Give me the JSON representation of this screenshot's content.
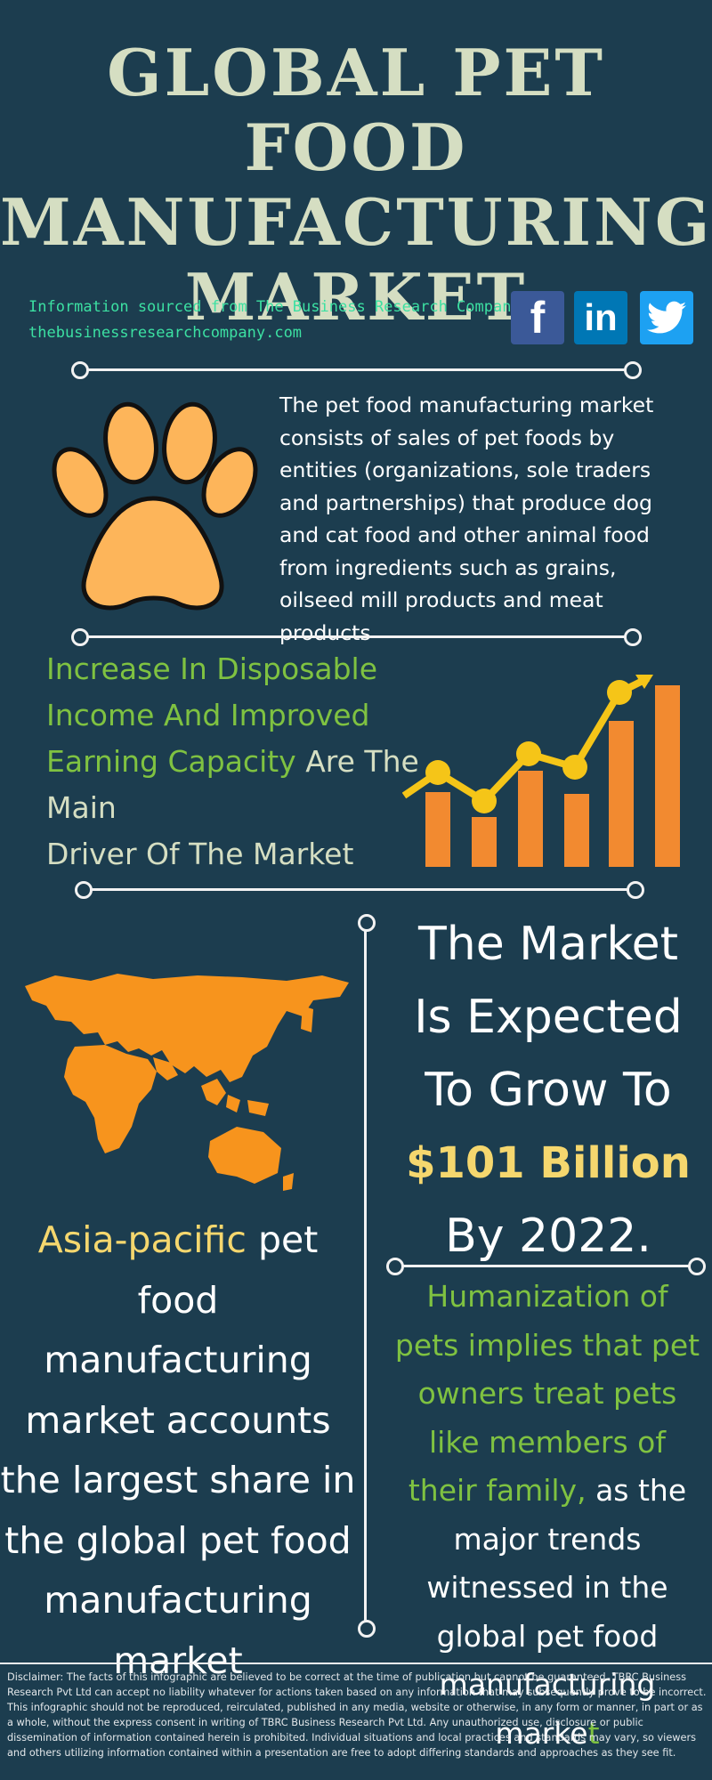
{
  "title": {
    "line1": "GLOBAL PET FOOD",
    "line2": "MANUFACTURING",
    "line3": "MARKET"
  },
  "source": {
    "line1": "Information sourced from The Business Research Company",
    "line2": "thebusinessresearchcompany.com"
  },
  "social": [
    {
      "icon": "facebook-icon",
      "glyph": "f",
      "color": "#3b5998"
    },
    {
      "icon": "linkedin-icon",
      "glyph": "in",
      "color": "#0077b5"
    },
    {
      "icon": "twitter-icon",
      "glyph": "♥",
      "color": "#1da1f2"
    }
  ],
  "description": "The pet food manufacturing market consists of sales of pet foods by entities (organizations, sole traders and partnerships) that produce dog and cat food and other animal food from ingredients such as grains, oilseed mill products and meat products",
  "driver": {
    "green1": "Increase In Disposable",
    "green2": "Income And Improved",
    "green3": "Earning Capacity",
    "rest1": " Are The",
    "rest2": "Main",
    "rest3": "Driver Of The Market"
  },
  "growth": {
    "l1": "The Market",
    "l2": "Is Expected",
    "l3": "To Grow To",
    "amount": "$101 Billion",
    "l5": "By 2022."
  },
  "asia": {
    "highlight": "Asia-pacific",
    "text": " pet food manufacturing market accounts the largest share in the global pet food manufacturing market"
  },
  "trend": {
    "highlight": "Humanization of pets implies that pet owners treat pets like members of their family,",
    "text": " as the major trends witnessed in the global pet food manufacturing marke",
    "last": "t"
  },
  "disclaimer": "Disclaimer: The facts of this infographic are believed to be correct at the time of publication but cannot be guaranteed. TBRC Business Research Pvt Ltd can accept no liability whatever for actions taken based on any information that may subsequently prove to be incorrect. This infographic should not be reproduced, reirculated, published in any media, website or otherwise, in any form or manner, in part or as a whole, without the express consent in writing of TBRC Business Research Pvt Ltd. Any unauthorized use, disclosure or public dissemination of information contained herein is prohibited. Individual situations and local practices and standards may vary, so viewers and others utilizing information contained within a presentation are free to adopt differing standards and approaches as they see fit.",
  "colors": {
    "background": "#1c3d4f",
    "title": "#d5dec2",
    "source_text": "#3ce0a2",
    "highlight_green": "#7fc241",
    "highlight_yellow": "#f5d76e",
    "paw": "#fdb55a",
    "map": "#f7941d",
    "bars": "#f28a30",
    "trend_line": "#f5c518"
  }
}
